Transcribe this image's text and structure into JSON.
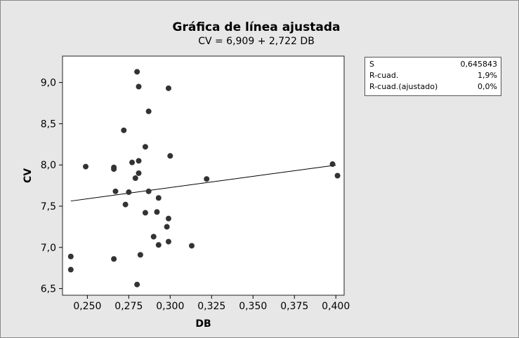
{
  "chart_data": {
    "type": "scatter",
    "title": "Gráfica de línea ajustada",
    "subtitle": "CV =  6,909 + 2,722 DB",
    "xlabel": "DB",
    "ylabel": "CV",
    "xlim": [
      0.235,
      0.405
    ],
    "ylim": [
      6.42,
      9.32
    ],
    "xticks": [
      {
        "value": 0.25,
        "label": "0,250"
      },
      {
        "value": 0.275,
        "label": "0,275"
      },
      {
        "value": 0.3,
        "label": "0,300"
      },
      {
        "value": 0.325,
        "label": "0,325"
      },
      {
        "value": 0.35,
        "label": "0,350"
      },
      {
        "value": 0.375,
        "label": "0,375"
      },
      {
        "value": 0.4,
        "label": "0,400"
      }
    ],
    "yticks": [
      {
        "value": 6.5,
        "label": "6,5"
      },
      {
        "value": 7.0,
        "label": "7,0"
      },
      {
        "value": 7.5,
        "label": "7,5"
      },
      {
        "value": 8.0,
        "label": "8,0"
      },
      {
        "value": 8.5,
        "label": "8,5"
      },
      {
        "value": 9.0,
        "label": "9,0"
      }
    ],
    "points": [
      {
        "x": 0.24,
        "y": 6.89
      },
      {
        "x": 0.24,
        "y": 6.73
      },
      {
        "x": 0.249,
        "y": 7.98
      },
      {
        "x": 0.266,
        "y": 7.95
      },
      {
        "x": 0.266,
        "y": 7.97
      },
      {
        "x": 0.266,
        "y": 6.86
      },
      {
        "x": 0.267,
        "y": 7.68
      },
      {
        "x": 0.272,
        "y": 8.42
      },
      {
        "x": 0.273,
        "y": 7.52
      },
      {
        "x": 0.275,
        "y": 7.67
      },
      {
        "x": 0.277,
        "y": 8.03
      },
      {
        "x": 0.279,
        "y": 7.84
      },
      {
        "x": 0.28,
        "y": 9.13
      },
      {
        "x": 0.28,
        "y": 6.55
      },
      {
        "x": 0.281,
        "y": 7.9
      },
      {
        "x": 0.281,
        "y": 8.05
      },
      {
        "x": 0.281,
        "y": 8.95
      },
      {
        "x": 0.282,
        "y": 6.91
      },
      {
        "x": 0.285,
        "y": 7.42
      },
      {
        "x": 0.285,
        "y": 8.22
      },
      {
        "x": 0.287,
        "y": 8.65
      },
      {
        "x": 0.287,
        "y": 7.68
      },
      {
        "x": 0.29,
        "y": 7.13
      },
      {
        "x": 0.292,
        "y": 7.43
      },
      {
        "x": 0.293,
        "y": 7.6
      },
      {
        "x": 0.293,
        "y": 7.03
      },
      {
        "x": 0.298,
        "y": 7.25
      },
      {
        "x": 0.299,
        "y": 7.35
      },
      {
        "x": 0.299,
        "y": 8.93
      },
      {
        "x": 0.299,
        "y": 7.07
      },
      {
        "x": 0.3,
        "y": 8.11
      },
      {
        "x": 0.313,
        "y": 7.02
      },
      {
        "x": 0.322,
        "y": 7.83
      },
      {
        "x": 0.398,
        "y": 8.01
      },
      {
        "x": 0.401,
        "y": 7.87
      }
    ],
    "fit_line": {
      "intercept": 6.909,
      "slope": 2.722,
      "x_range": [
        0.24,
        0.4
      ]
    },
    "grid": false,
    "legend": "none",
    "colors": {
      "outer_bg": "#e7e7e7",
      "plot_bg": "#ffffff",
      "points": "#333333",
      "line": "#000000"
    }
  },
  "stats": [
    {
      "label": "S",
      "value": "0,645843"
    },
    {
      "label": "R-cuad.",
      "value": "1,9%"
    },
    {
      "label": "R-cuad.(ajustado)",
      "value": "0,0%"
    }
  ]
}
